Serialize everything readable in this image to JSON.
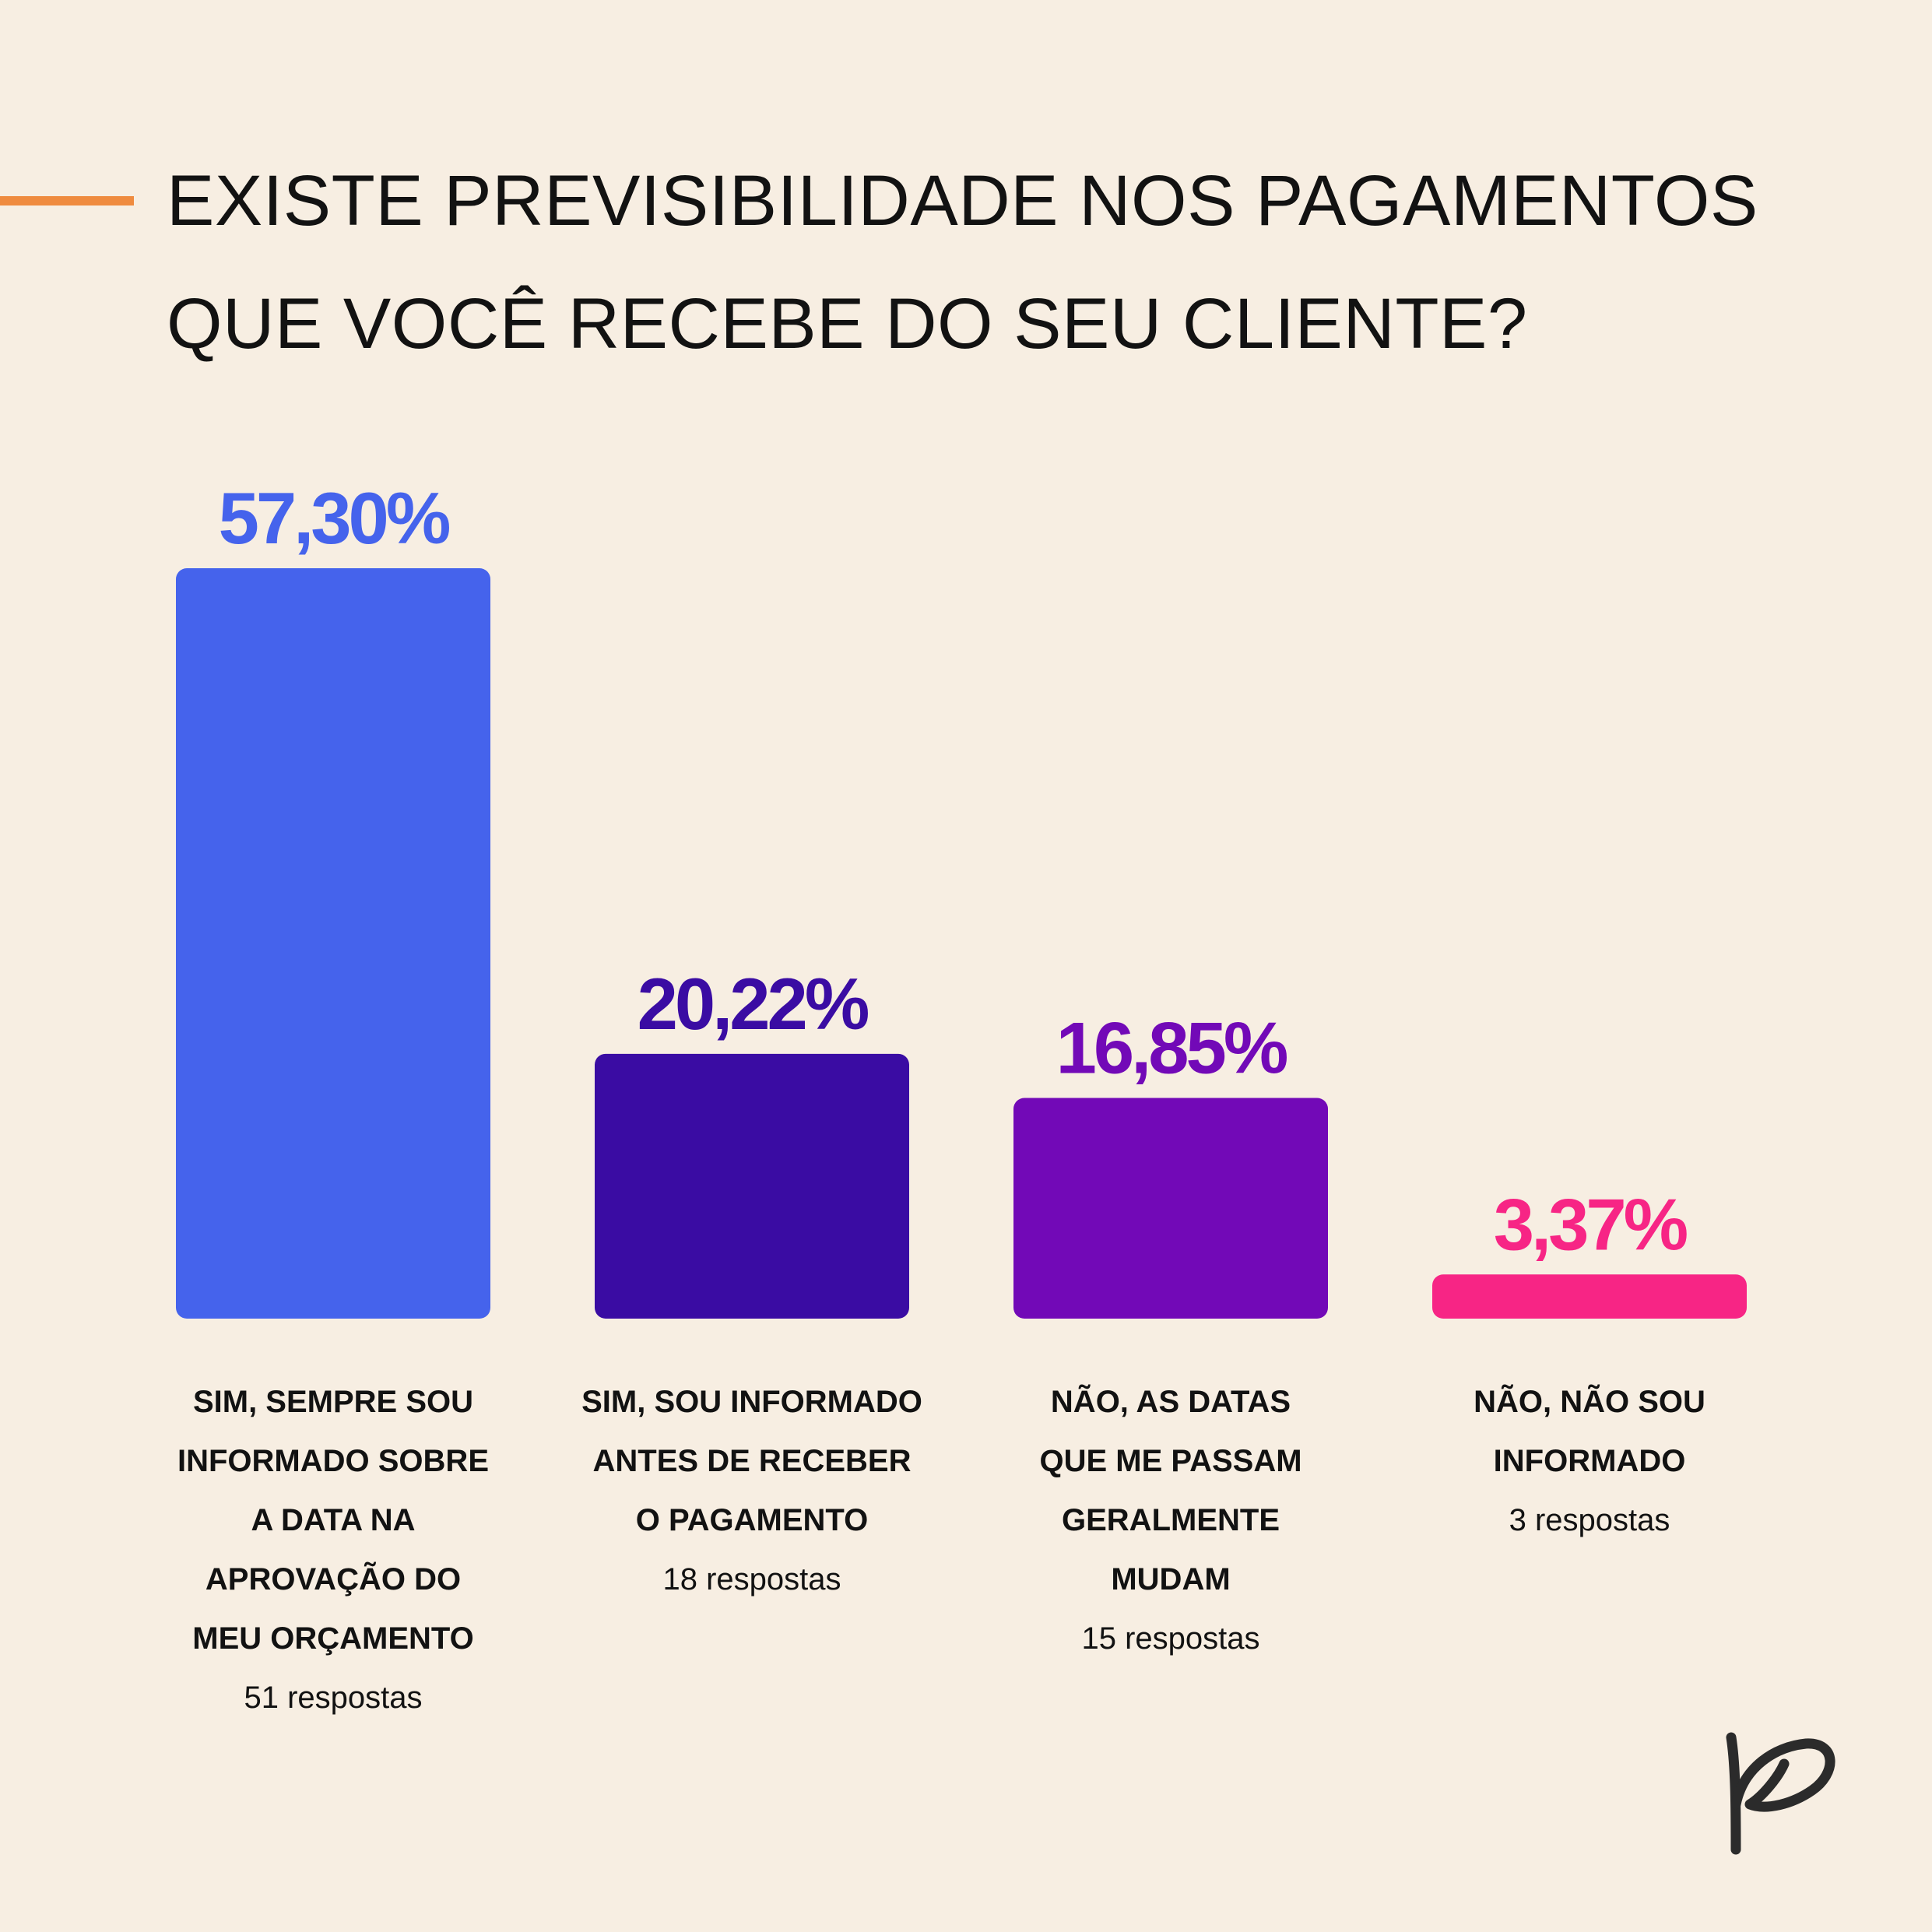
{
  "title": {
    "line1": "EXISTE PREVISIBILIDADE NOS PAGAMENTOS",
    "line2": "QUE VOCÊ RECEBE DO SEU CLIENTE?"
  },
  "colors": {
    "background": "#f7eee2",
    "accent": "#ef8b3f",
    "text": "#121212"
  },
  "logo": {
    "icon": "p-script-logo",
    "color": "#2b2b2b"
  },
  "chart_data": {
    "type": "bar",
    "title": "EXISTE PREVISIBILIDADE NOS PAGAMENTOS QUE VOCÊ RECEBE DO SEU CLIENTE?",
    "xlabel": "",
    "ylabel": "",
    "ylim": [
      0,
      57.3
    ],
    "grid": false,
    "categories": [
      "SIM, SEMPRE SOU INFORMADO SOBRE A DATA NA APROVAÇÃO DO MEU ORÇAMENTO",
      "SIM, SOU INFORMADO ANTES DE RECEBER O PAGAMENTO",
      "NÃO, AS DATAS QUE ME PASSAM GERALMENTE MUDAM",
      "NÃO, NÃO SOU INFORMADO"
    ],
    "bars": [
      {
        "value": 57.3,
        "label": "57,30%",
        "category_lines": [
          "SIM, SEMPRE SOU",
          "INFORMADO SOBRE",
          "A DATA NA",
          "APROVAÇÃO DO",
          "MEU ORÇAMENTO"
        ],
        "count_text": "51 respostas",
        "color": "#4563ec"
      },
      {
        "value": 20.22,
        "label": "20,22%",
        "category_lines": [
          "SIM, SOU INFORMADO",
          "ANTES DE RECEBER",
          "O PAGAMENTO"
        ],
        "count_text": "18 respostas",
        "color": "#3a0ca3"
      },
      {
        "value": 16.85,
        "label": "16,85%",
        "category_lines": [
          "NÃO, AS DATAS",
          "QUE ME PASSAM",
          "GERALMENTE",
          "MUDAM"
        ],
        "count_text": "15 respostas",
        "color": "#7209b7"
      },
      {
        "value": 3.37,
        "label": "3,37%",
        "category_lines": [
          "NÃO, NÃO SOU",
          "INFORMADO"
        ],
        "count_text": "3 respostas",
        "color": "#f72585"
      }
    ]
  }
}
